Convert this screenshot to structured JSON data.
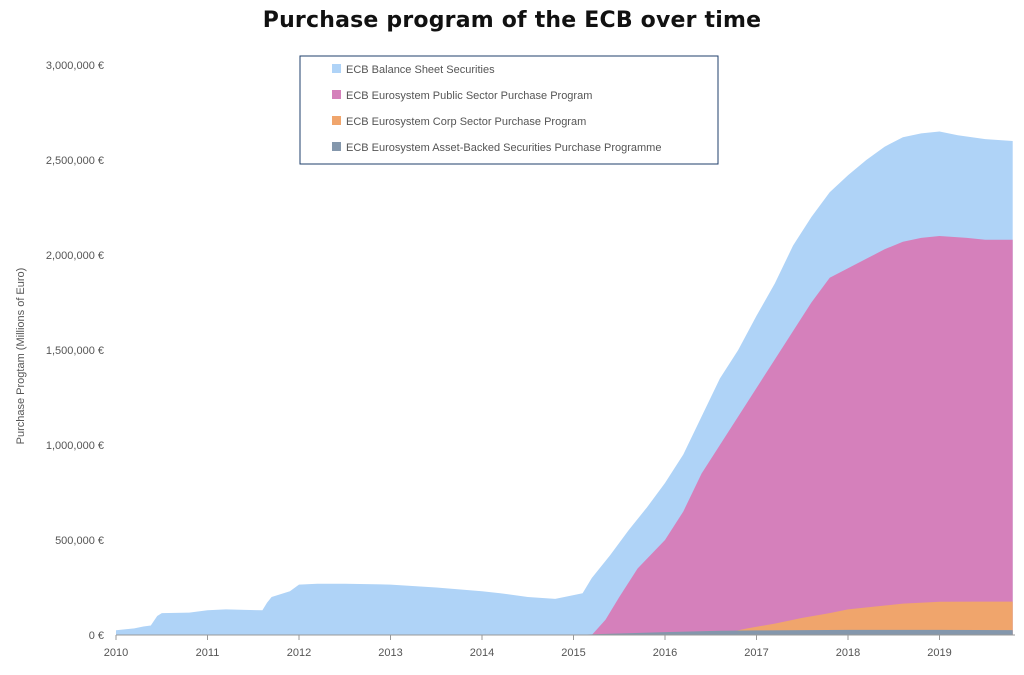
{
  "chart_data": {
    "type": "area",
    "stacked": false,
    "title": "Purchase program of the ECB over time",
    "ylabel": "Purchase Progtam (Millions of Euro)",
    "xlabel": "",
    "xlim": [
      2010,
      2019.8
    ],
    "ylim": [
      0,
      3000000
    ],
    "x_ticks": [
      "2010",
      "2011",
      "2012",
      "2013",
      "2014",
      "2015",
      "2016",
      "2017",
      "2018",
      "2019"
    ],
    "y_ticks": [
      "0 €",
      "500,000 €",
      "1,000,000 €",
      "1,500,000 €",
      "2,000,000 €",
      "2,500,000 €",
      "3,000,000 €"
    ],
    "grid": false,
    "legend_position": "top-center",
    "series": [
      {
        "name": "ECB Balance Sheet Securities",
        "color": "#afd3f7",
        "points": [
          [
            2010.0,
            25000
          ],
          [
            2010.2,
            35000
          ],
          [
            2010.3,
            45000
          ],
          [
            2010.38,
            50000
          ],
          [
            2010.45,
            100000
          ],
          [
            2010.5,
            115000
          ],
          [
            2010.8,
            118000
          ],
          [
            2011.0,
            130000
          ],
          [
            2011.2,
            135000
          ],
          [
            2011.6,
            130000
          ],
          [
            2011.65,
            170000
          ],
          [
            2011.7,
            200000
          ],
          [
            2011.9,
            230000
          ],
          [
            2012.0,
            265000
          ],
          [
            2012.2,
            270000
          ],
          [
            2012.5,
            270000
          ],
          [
            2013.0,
            265000
          ],
          [
            2013.5,
            250000
          ],
          [
            2014.0,
            230000
          ],
          [
            2014.2,
            220000
          ],
          [
            2014.5,
            200000
          ],
          [
            2014.8,
            190000
          ],
          [
            2014.9,
            200000
          ],
          [
            2015.1,
            220000
          ],
          [
            2015.2,
            300000
          ],
          [
            2015.4,
            420000
          ],
          [
            2015.6,
            550000
          ],
          [
            2015.8,
            670000
          ],
          [
            2016.0,
            800000
          ],
          [
            2016.2,
            950000
          ],
          [
            2016.4,
            1150000
          ],
          [
            2016.6,
            1350000
          ],
          [
            2016.8,
            1500000
          ],
          [
            2017.0,
            1680000
          ],
          [
            2017.2,
            1850000
          ],
          [
            2017.4,
            2050000
          ],
          [
            2017.6,
            2200000
          ],
          [
            2017.8,
            2330000
          ],
          [
            2018.0,
            2420000
          ],
          [
            2018.2,
            2500000
          ],
          [
            2018.4,
            2570000
          ],
          [
            2018.6,
            2620000
          ],
          [
            2018.8,
            2640000
          ],
          [
            2019.0,
            2650000
          ],
          [
            2019.2,
            2630000
          ],
          [
            2019.5,
            2610000
          ],
          [
            2019.8,
            2600000
          ]
        ]
      },
      {
        "name": "ECB Eurosystem Public Sector Purchase Program",
        "color": "#d580bb",
        "points": [
          [
            2015.2,
            0
          ],
          [
            2015.35,
            80000
          ],
          [
            2015.5,
            200000
          ],
          [
            2015.7,
            350000
          ],
          [
            2016.0,
            500000
          ],
          [
            2016.2,
            650000
          ],
          [
            2016.4,
            850000
          ],
          [
            2016.6,
            1000000
          ],
          [
            2016.8,
            1150000
          ],
          [
            2017.0,
            1300000
          ],
          [
            2017.2,
            1450000
          ],
          [
            2017.4,
            1600000
          ],
          [
            2017.6,
            1750000
          ],
          [
            2017.8,
            1880000
          ],
          [
            2018.0,
            1930000
          ],
          [
            2018.2,
            1980000
          ],
          [
            2018.4,
            2030000
          ],
          [
            2018.6,
            2070000
          ],
          [
            2018.8,
            2090000
          ],
          [
            2019.0,
            2100000
          ],
          [
            2019.3,
            2090000
          ],
          [
            2019.5,
            2080000
          ],
          [
            2019.8,
            2080000
          ]
        ]
      },
      {
        "name": "ECB Eurosystem Corp Sector Purchase Program",
        "color": "#f0a56c",
        "points": [
          [
            2016.55,
            0
          ],
          [
            2016.7,
            15000
          ],
          [
            2016.9,
            35000
          ],
          [
            2017.2,
            60000
          ],
          [
            2017.5,
            90000
          ],
          [
            2017.8,
            115000
          ],
          [
            2018.0,
            135000
          ],
          [
            2018.3,
            150000
          ],
          [
            2018.6,
            165000
          ],
          [
            2018.9,
            172000
          ],
          [
            2019.0,
            175000
          ],
          [
            2019.4,
            176000
          ],
          [
            2019.8,
            176000
          ]
        ]
      },
      {
        "name": "ECB Eurosystem Asset-Backed Securities Purchase Programme",
        "color": "#8497ac",
        "points": [
          [
            2015.0,
            0
          ],
          [
            2015.3,
            5000
          ],
          [
            2016.0,
            15000
          ],
          [
            2016.6,
            22000
          ],
          [
            2017.0,
            24000
          ],
          [
            2018.0,
            27000
          ],
          [
            2019.0,
            27000
          ],
          [
            2019.8,
            26000
          ]
        ]
      }
    ]
  }
}
